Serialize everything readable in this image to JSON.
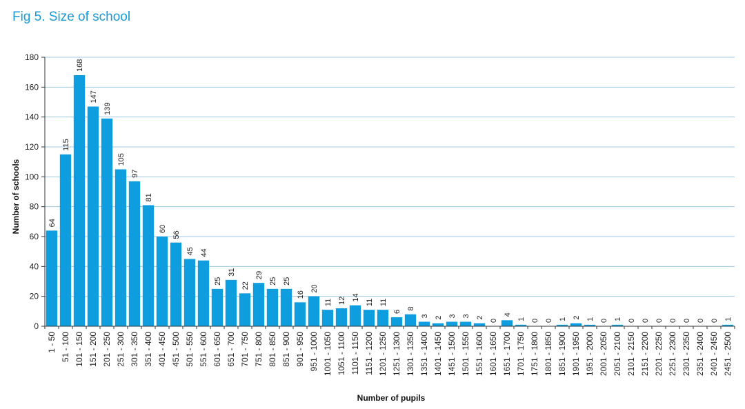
{
  "figure": {
    "title": "Fig 5. Size of school"
  },
  "colors": {
    "bar": "#0e9ee0",
    "grid": "#9cc9e6",
    "title": "#1a9ad6",
    "axis": "#333333"
  },
  "chart_data": {
    "type": "bar",
    "title": "Fig 5. Size of school",
    "xlabel": "Number of pupils",
    "ylabel": "Number of schools",
    "ylim": [
      0,
      180
    ],
    "yticks": [
      0,
      20,
      40,
      60,
      80,
      100,
      120,
      140,
      160,
      180
    ],
    "grid": true,
    "categories": [
      "1 - 50",
      "51 - 100",
      "101 - 150",
      "151 - 200",
      "201 - 250",
      "251 - 300",
      "301 - 350",
      "351 - 400",
      "401 - 450",
      "451 - 500",
      "501 - 550",
      "551 - 600",
      "601 - 650",
      "651 - 700",
      "701 - 750",
      "751 - 800",
      "801 - 850",
      "851 - 900",
      "901 - 950",
      "951 - 1000",
      "1001 - 1050",
      "1051 - 1100",
      "1101 - 1150",
      "1151 - 1200",
      "1201 - 1250",
      "1251 - 1300",
      "1301 - 1350",
      "1351 - 1400",
      "1401 - 1450",
      "1451 - 1500",
      "1501 - 1550",
      "1551 - 1600",
      "1601 - 1650",
      "1651 - 1700",
      "1701 - 1750",
      "1751 - 1800",
      "1801 - 1850",
      "1851 - 1900",
      "1901 - 1950",
      "1951 - 2000",
      "2001 - 2050",
      "2051 - 2100",
      "2101 - 2150",
      "2151 - 2200",
      "2201 - 2250",
      "2251 - 2300",
      "2301 - 2350",
      "2351 - 2400",
      "2401 - 2450",
      "2451 - 2500"
    ],
    "values": [
      64,
      115,
      168,
      147,
      139,
      105,
      97,
      81,
      60,
      56,
      45,
      44,
      25,
      31,
      22,
      29,
      25,
      25,
      16,
      20,
      11,
      12,
      14,
      11,
      11,
      6,
      8,
      3,
      2,
      3,
      3,
      2,
      0,
      4,
      1,
      0,
      0,
      1,
      2,
      1,
      0,
      1,
      0,
      0,
      0,
      0,
      0,
      0,
      0,
      1
    ]
  }
}
